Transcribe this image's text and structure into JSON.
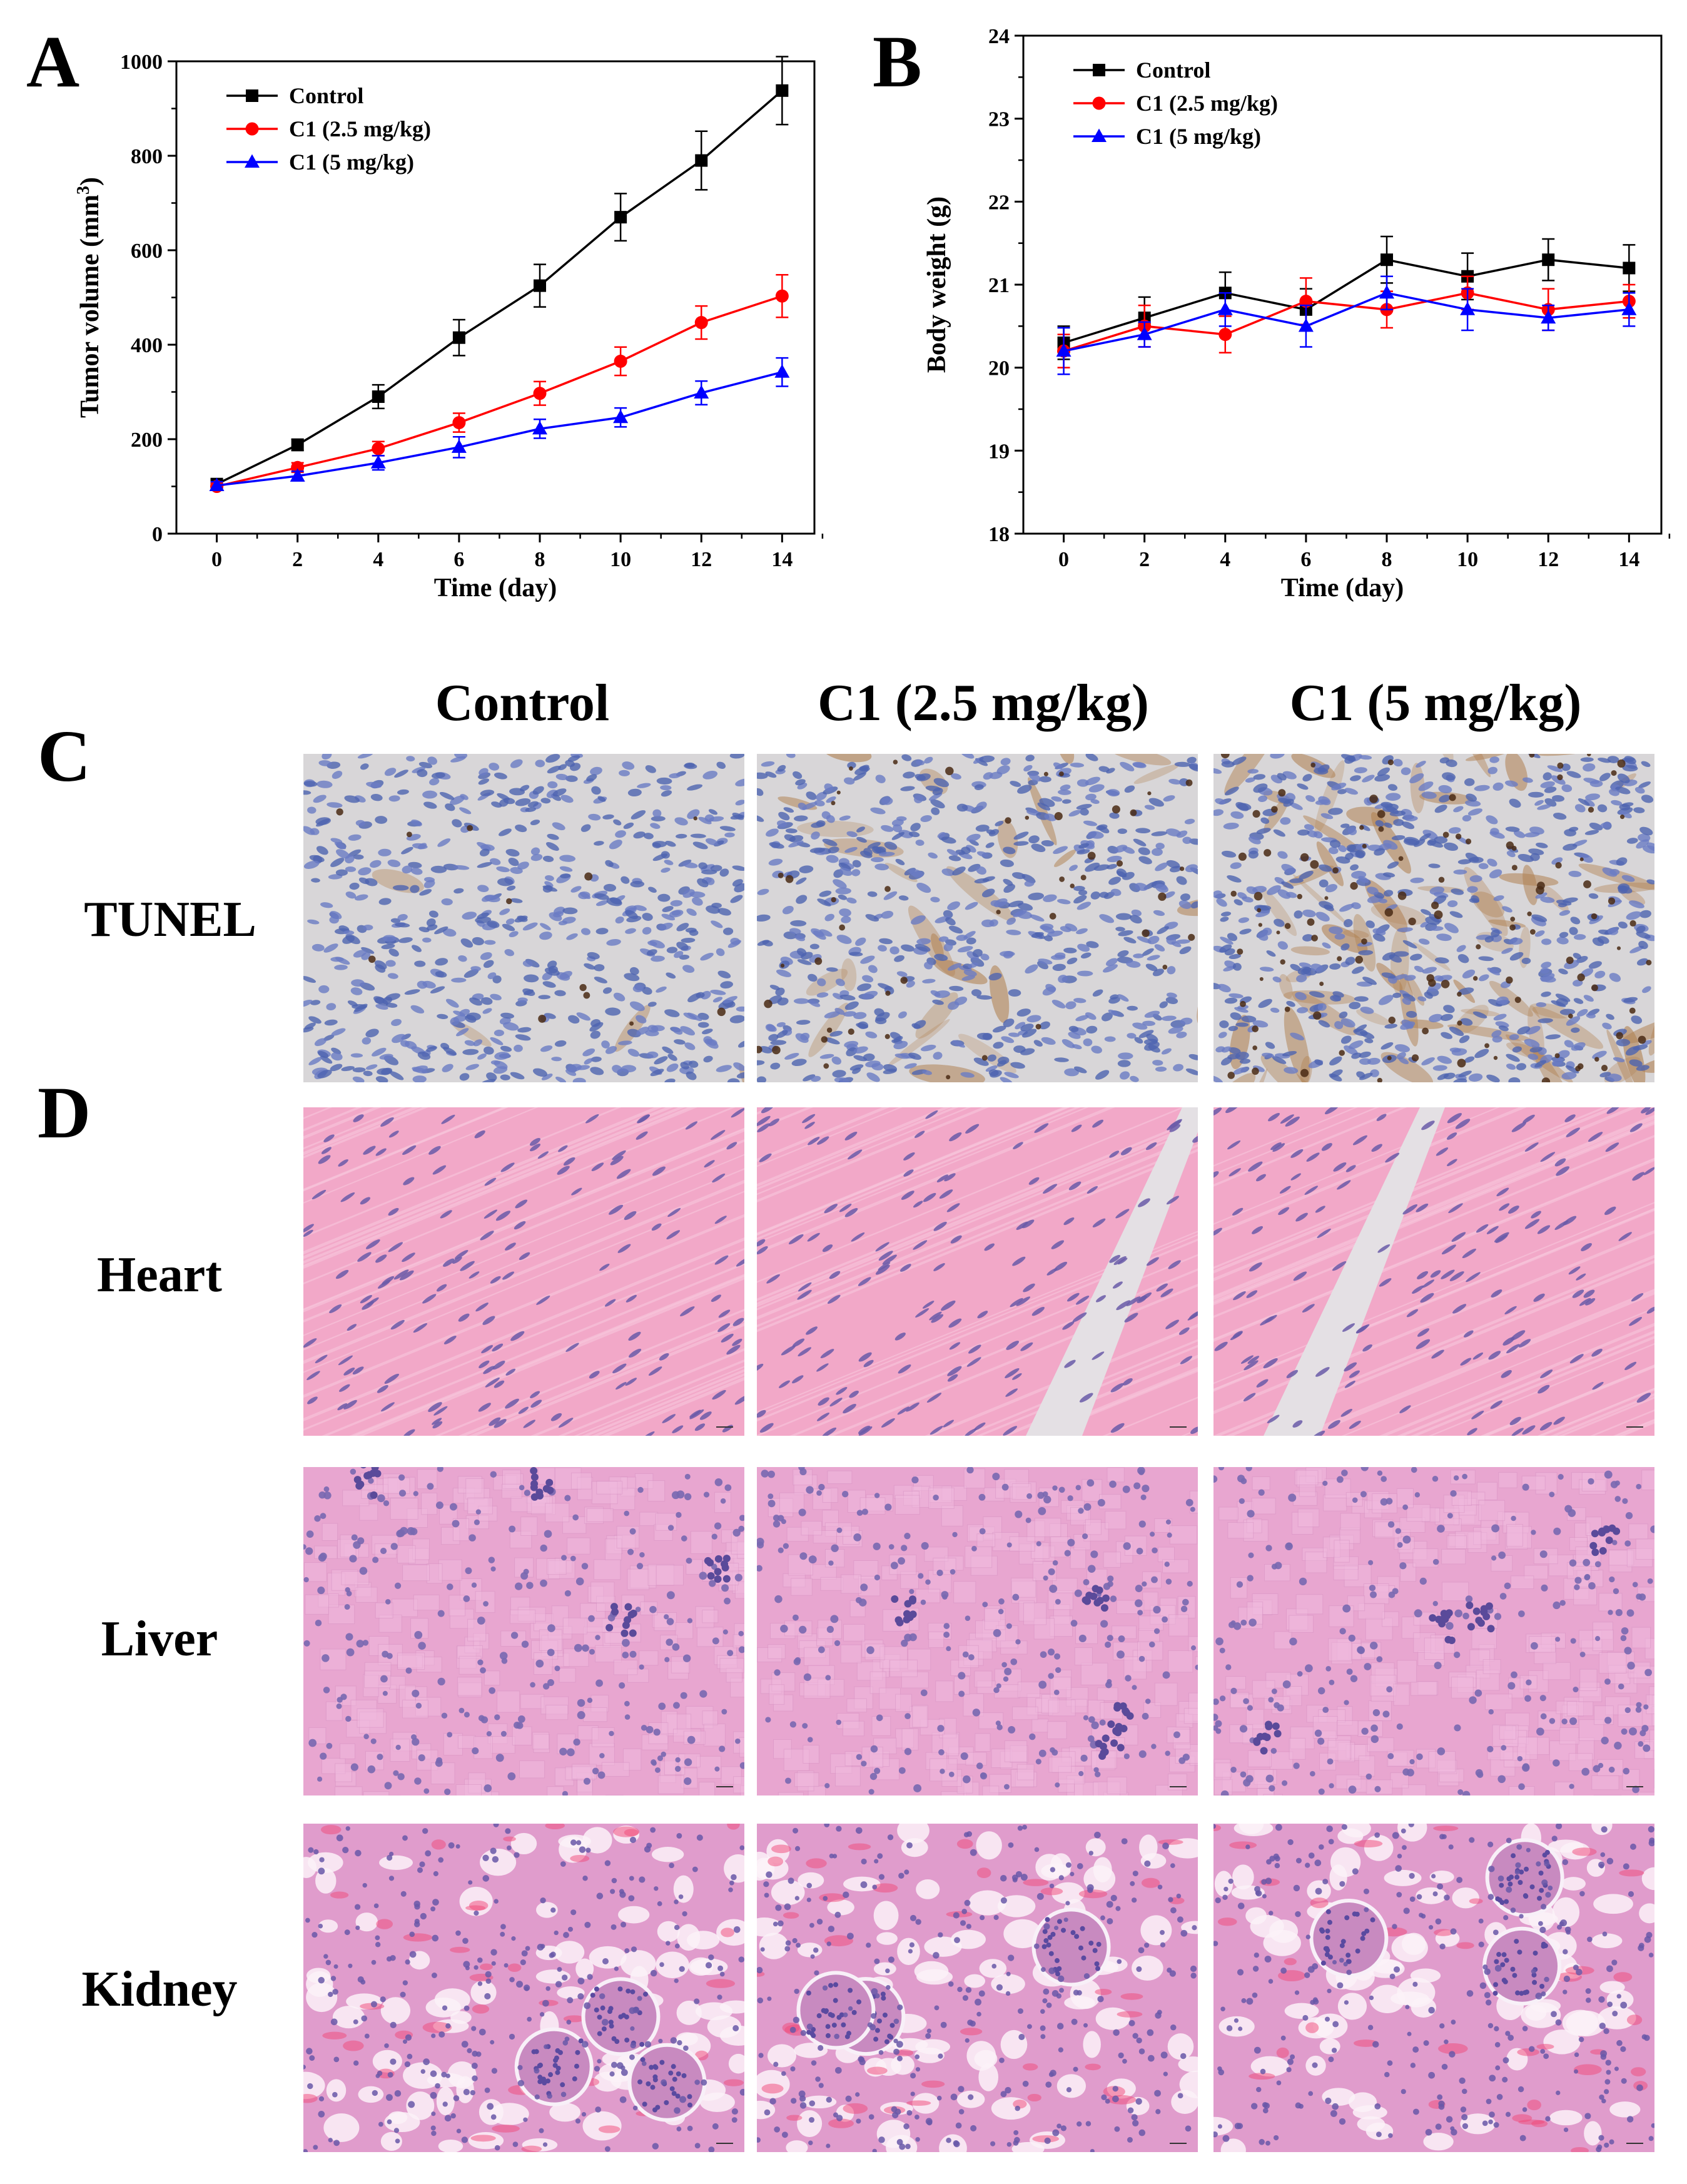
{
  "panel_letters": [
    "A",
    "B",
    "C",
    "D"
  ],
  "chart_data": [
    {
      "type": "line",
      "panel": "A",
      "xlabel": "Time (day)",
      "ylabel": "Tumor volume (mm",
      "ylabel_sup": "3",
      "ylabel_close": ")",
      "x": [
        0,
        2,
        4,
        6,
        8,
        10,
        12,
        14
      ],
      "xlim": [
        -1,
        14.8
      ],
      "ylim": [
        0,
        1000
      ],
      "xticks": [
        "0",
        "2",
        "4",
        "6",
        "8",
        "10",
        "12",
        "14"
      ],
      "yticks": [
        "0",
        "200",
        "400",
        "600",
        "800",
        "1000"
      ],
      "ytick_values": [
        0,
        200,
        400,
        600,
        800,
        1000
      ],
      "legend_position": "top-left",
      "series": [
        {
          "name": "Control",
          "color": "#000000",
          "marker": "square",
          "values": [
            105,
            188,
            290,
            415,
            525,
            670,
            790,
            938
          ],
          "errors": [
            8,
            12,
            25,
            38,
            45,
            50,
            62,
            72
          ]
        },
        {
          "name": "C1 (2.5 mg/kg)",
          "color": "#ff0000",
          "marker": "circle",
          "values": [
            100,
            140,
            180,
            235,
            297,
            365,
            447,
            503
          ],
          "errors": [
            8,
            10,
            15,
            20,
            25,
            30,
            35,
            45
          ]
        },
        {
          "name": "C1 (5 mg/kg)",
          "color": "#0000ff",
          "marker": "triangle",
          "values": [
            102,
            122,
            150,
            183,
            222,
            246,
            298,
            342
          ],
          "errors": [
            8,
            10,
            15,
            22,
            20,
            20,
            25,
            30
          ]
        }
      ]
    },
    {
      "type": "line",
      "panel": "B",
      "xlabel": "Time (day)",
      "ylabel": "Body weight (g)",
      "x": [
        0,
        2,
        4,
        6,
        8,
        10,
        12,
        14
      ],
      "xlim": [
        -1,
        14.8
      ],
      "ylim": [
        18,
        24
      ],
      "xticks": [
        "0",
        "2",
        "4",
        "6",
        "8",
        "10",
        "12",
        "14"
      ],
      "yticks": [
        "18",
        "19",
        "20",
        "21",
        "22",
        "23",
        "24"
      ],
      "ytick_values": [
        18,
        19,
        20,
        21,
        22,
        23,
        24
      ],
      "legend_position": "top-left",
      "series": [
        {
          "name": "Control",
          "color": "#000000",
          "marker": "square",
          "values": [
            20.3,
            20.6,
            20.9,
            20.7,
            21.3,
            21.1,
            21.3,
            21.2
          ],
          "errors": [
            0.2,
            0.25,
            0.25,
            0.25,
            0.28,
            0.28,
            0.25,
            0.28
          ]
        },
        {
          "name": "C1 (2.5 mg/kg)",
          "color": "#ff0000",
          "marker": "circle",
          "values": [
            20.2,
            20.5,
            20.4,
            20.8,
            20.7,
            20.9,
            20.7,
            20.8
          ],
          "errors": [
            0.2,
            0.25,
            0.22,
            0.28,
            0.22,
            0.2,
            0.25,
            0.2
          ]
        },
        {
          "name": "C1 (5 mg/kg)",
          "color": "#0000ff",
          "marker": "triangle",
          "values": [
            20.2,
            20.4,
            20.7,
            20.5,
            20.9,
            20.7,
            20.6,
            20.7
          ],
          "errors": [
            0.28,
            0.15,
            0.2,
            0.25,
            0.2,
            0.25,
            0.15,
            0.2
          ]
        }
      ]
    }
  ],
  "micrographs": {
    "columns": [
      "Control",
      "C1 (2.5 mg/kg)",
      "C1 (5 mg/kg)"
    ],
    "rows": [
      {
        "label": "TUNEL",
        "stain": "tunel",
        "brown_level": [
          0.06,
          0.3,
          0.75
        ]
      },
      {
        "label": "Heart",
        "stain": "heart"
      },
      {
        "label": "Liver",
        "stain": "liver"
      },
      {
        "label": "Kidney",
        "stain": "kidney"
      }
    ]
  }
}
